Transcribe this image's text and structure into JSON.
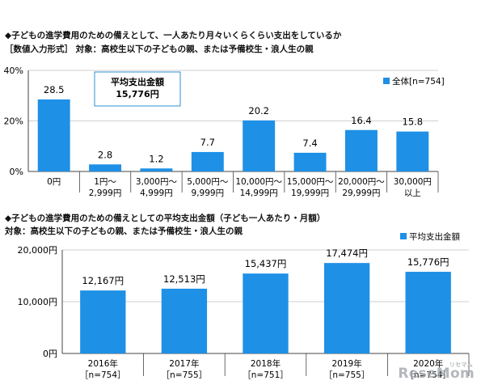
{
  "header": {
    "title1": "◆子どもの進学費用のための備えとして、一人あたり月々いくらくらい支出をしているか",
    "subtitle1": "［数値入力形式］ 対象：高校生以下の子どもの親、または予備校生・浪人生の親",
    "title2": "◆子どもの進学費用のための備えとしての平均支出金額（子ども一人あたり・月額）",
    "subtitle2": "対象：高校生以下の子どもの親、または予備校生・浪人生の親"
  },
  "watermark": {
    "text": "ReseMom",
    "small": "リセマム"
  },
  "colors": {
    "bar": "#1e90e6",
    "axis": "#444444",
    "grid": "#bfbfbf"
  },
  "chart_data": [
    {
      "type": "bar",
      "categories": [
        [
          "0円"
        ],
        [
          "1円～",
          "2,999円"
        ],
        [
          "3,000円～",
          "4,999円"
        ],
        [
          "5,000円～",
          "9,999円"
        ],
        [
          "10,000円～",
          "14,999円"
        ],
        [
          "15,000円～",
          "19,999円"
        ],
        [
          "20,000円～",
          "29,999円"
        ],
        [
          "30,000円",
          "以上"
        ]
      ],
      "series": [
        {
          "name": "全体[n=754]",
          "values": [
            28.5,
            2.8,
            1.2,
            7.7,
            20.2,
            7.4,
            16.4,
            15.8
          ]
        }
      ],
      "value_labels": [
        "28.5",
        "2.8",
        "1.2",
        "7.7",
        "20.2",
        "7.4",
        "16.4",
        "15.8"
      ],
      "ylim": [
        0,
        40
      ],
      "yticks": [
        {
          "value": 0,
          "label": "0%"
        },
        {
          "value": 20,
          "label": "20%"
        },
        {
          "value": 40,
          "label": "40%"
        }
      ],
      "annotation": {
        "title": "平均支出金額",
        "value": "15,776円"
      },
      "legend_position": "top-right"
    },
    {
      "type": "bar",
      "categories": [
        [
          "2016年",
          "［n=754］"
        ],
        [
          "2017年",
          "［n=755］"
        ],
        [
          "2018年",
          "［n=751］"
        ],
        [
          "2019年",
          "［n=755］"
        ],
        [
          "2020年",
          "［n=754］"
        ]
      ],
      "series": [
        {
          "name": "平均支出金額",
          "values": [
            12167,
            12513,
            15437,
            17474,
            15776
          ]
        }
      ],
      "value_labels": [
        "12,167円",
        "12,513円",
        "15,437円",
        "17,474円",
        "15,776円"
      ],
      "ylim": [
        0,
        20000
      ],
      "yticks": [
        {
          "value": 0,
          "label": "0円"
        },
        {
          "value": 10000,
          "label": "10,000円"
        },
        {
          "value": 20000,
          "label": "20,000円"
        }
      ],
      "legend_position": "top-right"
    }
  ]
}
